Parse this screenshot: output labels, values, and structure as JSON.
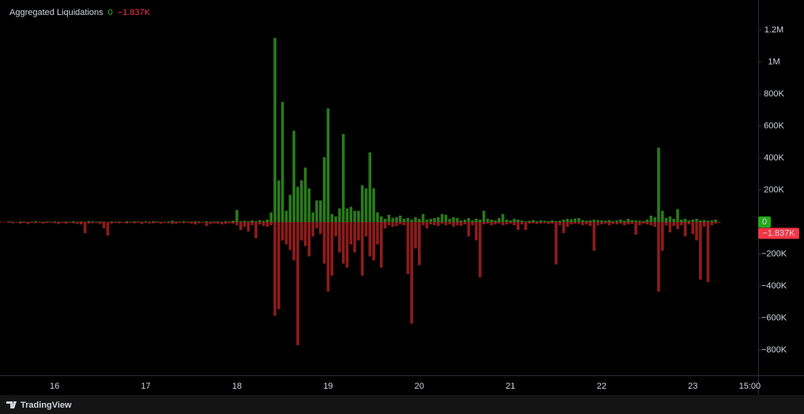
{
  "chart_data": {
    "type": "bar",
    "title": "Aggregated Liquidations",
    "footer": "TradingView",
    "categories": [
      null,
      null,
      null,
      null,
      null,
      null,
      null,
      null,
      null,
      null,
      null,
      null,
      "16",
      null,
      null,
      null,
      null,
      null,
      null,
      null,
      null,
      null,
      null,
      null,
      null,
      null,
      null,
      null,
      null,
      null,
      null,
      null,
      null,
      null,
      null,
      null,
      "17",
      null,
      null,
      null,
      null,
      null,
      null,
      null,
      null,
      null,
      null,
      null,
      null,
      null,
      null,
      null,
      null,
      null,
      null,
      null,
      null,
      null,
      null,
      null,
      "18",
      null,
      null,
      null,
      null,
      null,
      null,
      null,
      null,
      null,
      null,
      null,
      null,
      null,
      null,
      null,
      null,
      null,
      null,
      null,
      null,
      null,
      null,
      null,
      "19",
      null,
      null,
      null,
      null,
      null,
      null,
      null,
      null,
      null,
      null,
      null,
      null,
      null,
      null,
      null,
      null,
      null,
      null,
      null,
      null,
      null,
      null,
      null,
      "20",
      null,
      null,
      null,
      null,
      null,
      null,
      null,
      null,
      null,
      null,
      null,
      null,
      null,
      null,
      null,
      null,
      null,
      null,
      null,
      null,
      null,
      null,
      null,
      "21",
      null,
      null,
      null,
      null,
      null,
      null,
      null,
      null,
      null,
      null,
      null,
      null,
      null,
      null,
      null,
      null,
      null,
      null,
      null,
      null,
      null,
      null,
      null,
      "22",
      null,
      null,
      null,
      null,
      null,
      null,
      null,
      null,
      null,
      null,
      null,
      null,
      null,
      null,
      null,
      null,
      null,
      null,
      null,
      null,
      null,
      null,
      null,
      "23",
      null,
      null,
      null,
      null,
      null,
      null,
      null,
      null,
      null,
      null,
      null,
      null,
      null,
      null,
      "15:00"
    ],
    "series": [
      {
        "color": "#2a7a1c",
        "current_label": "0",
        "values": [
          3000,
          2000,
          0,
          4000,
          2000,
          0,
          3000,
          5000,
          2000,
          0,
          3000,
          2000,
          4000,
          2000,
          0,
          3000,
          2000,
          5000,
          2000,
          3000,
          0,
          6000,
          4000,
          2000,
          3000,
          2000,
          0,
          4000,
          2000,
          3000,
          0,
          5000,
          2000,
          4000,
          3000,
          2000,
          4000,
          2000,
          5000,
          3000,
          0,
          2000,
          4000,
          8000,
          3000,
          2000,
          6000,
          3000,
          2000,
          4000,
          3000,
          0,
          5000,
          2000,
          3000,
          4000,
          2000,
          6000,
          3000,
          8000,
          75000,
          5000,
          8000,
          4000,
          10000,
          6000,
          12000,
          8000,
          15000,
          60000,
          1150000,
          260000,
          750000,
          70000,
          170000,
          570000,
          220000,
          260000,
          340000,
          210000,
          60000,
          135000,
          135000,
          405000,
          710000,
          50000,
          35000,
          85000,
          550000,
          85000,
          95000,
          70000,
          70000,
          230000,
          210000,
          435000,
          210000,
          60000,
          35000,
          20000,
          45000,
          25000,
          30000,
          40000,
          20000,
          25000,
          15000,
          30000,
          20000,
          50000,
          15000,
          20000,
          25000,
          30000,
          50000,
          45000,
          20000,
          30000,
          25000,
          10000,
          15000,
          25000,
          10000,
          20000,
          15000,
          70000,
          20000,
          15000,
          10000,
          25000,
          50000,
          15000,
          10000,
          20000,
          15000,
          10000,
          5000,
          8000,
          12000,
          6000,
          10000,
          8000,
          5000,
          10000,
          6000,
          8000,
          15000,
          20000,
          18000,
          22000,
          25000,
          12000,
          8000,
          10000,
          15000,
          12000,
          10000,
          8000,
          12000,
          6000,
          10000,
          15000,
          8000,
          20000,
          12000,
          10000,
          8000,
          5000,
          15000,
          40000,
          30000,
          465000,
          70000,
          25000,
          35000,
          20000,
          80000,
          15000,
          20000,
          10000,
          15000,
          20000,
          10000,
          12000,
          8000,
          10000,
          15000,
          0,
          null,
          null,
          null,
          null,
          null,
          null,
          null,
          null
        ]
      },
      {
        "color": "#8e1c1c",
        "current_label": "−1.837K",
        "values": [
          -5000,
          -8000,
          -4000,
          -10000,
          -6000,
          -12000,
          -5000,
          -8000,
          -4000,
          -10000,
          -6000,
          -5000,
          -8000,
          -12000,
          -6000,
          -10000,
          -5000,
          -8000,
          -12000,
          -15000,
          -70000,
          -10000,
          -8000,
          -6000,
          -12000,
          -40000,
          -85000,
          -10000,
          -6000,
          -8000,
          -5000,
          -10000,
          -6000,
          -8000,
          -4000,
          -12000,
          -6000,
          -10000,
          -8000,
          -5000,
          -10000,
          -6000,
          -8000,
          -12000,
          -10000,
          -5000,
          -8000,
          -6000,
          -10000,
          -15000,
          -8000,
          -6000,
          -25000,
          -12000,
          -8000,
          -10000,
          -15000,
          -12000,
          -8000,
          -10000,
          -20000,
          -50000,
          -30000,
          -60000,
          -20000,
          -100000,
          -15000,
          -25000,
          -30000,
          -20000,
          -585000,
          -545000,
          -115000,
          -140000,
          -175000,
          -240000,
          -770000,
          -115000,
          -150000,
          -215000,
          -90000,
          -40000,
          -75000,
          -260000,
          -435000,
          -335000,
          -90000,
          -190000,
          -260000,
          -285000,
          -140000,
          -190000,
          -115000,
          -335000,
          -90000,
          -215000,
          -240000,
          -140000,
          -285000,
          -40000,
          -20000,
          -30000,
          -25000,
          -15000,
          -20000,
          -325000,
          -635000,
          -165000,
          -270000,
          -20000,
          -40000,
          -15000,
          -20000,
          -25000,
          -10000,
          -20000,
          -15000,
          -30000,
          -20000,
          -25000,
          -15000,
          -90000,
          -20000,
          -115000,
          -345000,
          -15000,
          -10000,
          -20000,
          -15000,
          -10000,
          -20000,
          -15000,
          -10000,
          -20000,
          -50000,
          -15000,
          -50000,
          -10000,
          -8000,
          -12000,
          -10000,
          -8000,
          -12000,
          -10000,
          -265000,
          -20000,
          -70000,
          -30000,
          -15000,
          -10000,
          -12000,
          -20000,
          -15000,
          -25000,
          -180000,
          -20000,
          -15000,
          -10000,
          -20000,
          -12000,
          -15000,
          -10000,
          -20000,
          -15000,
          -12000,
          -80000,
          -20000,
          -10000,
          -15000,
          -20000,
          -30000,
          -435000,
          -180000,
          -20000,
          -65000,
          -25000,
          -45000,
          -20000,
          -90000,
          -15000,
          -75000,
          -115000,
          -360000,
          -30000,
          -375000,
          -20000,
          -10000,
          -1837,
          null,
          null,
          null,
          null,
          null,
          null,
          null,
          null
        ]
      }
    ],
    "ylim": [
      -958000,
      1363000
    ],
    "yticks": [
      {
        "value": 1200000,
        "label": "1.2M"
      },
      {
        "value": 1000000,
        "label": "1M"
      },
      {
        "value": 800000,
        "label": "800K"
      },
      {
        "value": 600000,
        "label": "600K"
      },
      {
        "value": 400000,
        "label": "400K"
      },
      {
        "value": 200000,
        "label": "200K"
      },
      {
        "value": -200000,
        "label": "−200K"
      },
      {
        "value": -400000,
        "label": "−400K"
      },
      {
        "value": -600000,
        "label": "−600K"
      },
      {
        "value": -800000,
        "label": "−800K"
      }
    ],
    "grid": false
  }
}
